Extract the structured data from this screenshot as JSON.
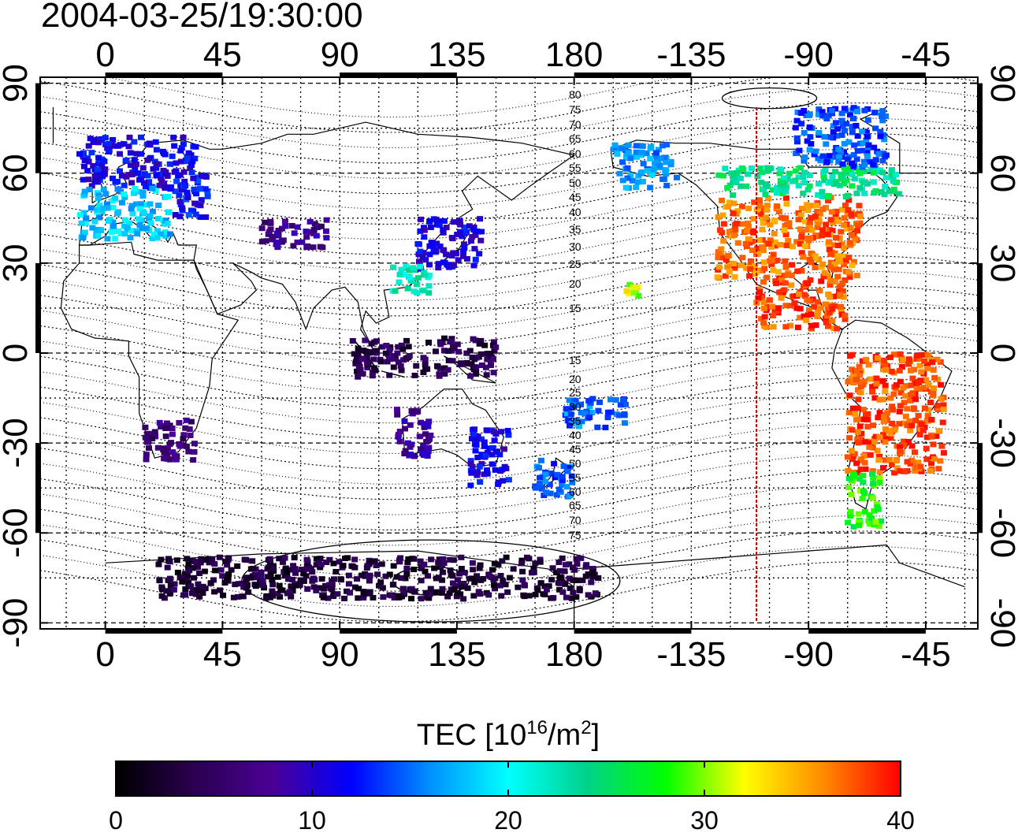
{
  "chart_data": {
    "type": "heatmap",
    "title": "2004-03-25/19:30:00",
    "projection": "equirectangular world map, longitude axis starting at -25",
    "x_axis": {
      "ticks": [
        0,
        45,
        90,
        135,
        180,
        -135,
        -90,
        -45
      ],
      "tick_labels": [
        "0",
        "45",
        "90",
        "135",
        "180",
        "-135",
        "-90",
        "-45"
      ],
      "lon_range": [
        -25,
        335
      ]
    },
    "y_axis": {
      "ticks": [
        90,
        60,
        30,
        0,
        -30,
        -60,
        -90
      ],
      "tick_labels": [
        "90",
        "60",
        "30",
        "0",
        "-30",
        "-60",
        "-90"
      ],
      "lat_range": [
        -92,
        92
      ]
    },
    "grid": true,
    "colorbar": {
      "label_prefix": "TEC  [10",
      "label_sup1": "16",
      "label_mid": "/m",
      "label_sup2": "2",
      "label_suffix": "]",
      "min": 0,
      "max": 40,
      "ticks": [
        0,
        10,
        20,
        30,
        40
      ],
      "tick_labels": [
        "0",
        "10",
        "20",
        "30",
        "40"
      ],
      "colormap": [
        "#000000",
        "#2a0050",
        "#4b0096",
        "#0000ff",
        "#0090ff",
        "#00ffff",
        "#00d28c",
        "#00ff00",
        "#ffff00",
        "#ff8c00",
        "#ff0000"
      ]
    },
    "marker_line": {
      "lon": -110,
      "color": "#e00000"
    },
    "contour_labels": [
      "80",
      "75",
      "70",
      "65",
      "60",
      "55",
      "50",
      "45",
      "40",
      "35",
      "30",
      "25",
      "20",
      "15",
      "15",
      "20",
      "25",
      "30",
      "35",
      "40",
      "45",
      "50",
      "55",
      "60",
      "65",
      "70",
      "75"
    ],
    "tec_regions": [
      {
        "name": "north-america",
        "lat": [
          25,
          52
        ],
        "lon": [
          -125,
          -70
        ],
        "tec": 37
      },
      {
        "name": "mexico-caribbean",
        "lat": [
          8,
          25
        ],
        "lon": [
          -110,
          -75
        ],
        "tec": 38
      },
      {
        "name": "south-america-east",
        "lat": [
          -40,
          0
        ],
        "lon": [
          -75,
          -38
        ],
        "tec": 38
      },
      {
        "name": "south-america-south",
        "lat": [
          -58,
          -40
        ],
        "lon": [
          -75,
          -62
        ],
        "tec": 28
      },
      {
        "name": "canada-band",
        "lat": [
          52,
          62
        ],
        "lon": [
          -125,
          -55
        ],
        "tec": 24
      },
      {
        "name": "canada-north",
        "lat": [
          62,
          82
        ],
        "lon": [
          -95,
          -60
        ],
        "tec": 14
      },
      {
        "name": "europe-north",
        "lat": [
          55,
          72
        ],
        "lon": [
          -10,
          35
        ],
        "tec": 11
      },
      {
        "name": "europe-south",
        "lat": [
          38,
          55
        ],
        "lon": [
          -10,
          25
        ],
        "tec": 18
      },
      {
        "name": "east-russia",
        "lat": [
          45,
          60
        ],
        "lon": [
          25,
          40
        ],
        "tec": 12
      },
      {
        "name": "central-asia",
        "lat": [
          35,
          45
        ],
        "lon": [
          60,
          85
        ],
        "tec": 7
      },
      {
        "name": "east-asia",
        "lat": [
          28,
          45
        ],
        "lon": [
          120,
          145
        ],
        "tec": 11
      },
      {
        "name": "taiwan-south-china",
        "lat": [
          20,
          30
        ],
        "lon": [
          110,
          125
        ],
        "tec": 22
      },
      {
        "name": "australia-west",
        "lat": [
          -35,
          -18
        ],
        "lon": [
          112,
          125
        ],
        "tec": 8
      },
      {
        "name": "australia-east",
        "lat": [
          -45,
          -25
        ],
        "lon": [
          140,
          155
        ],
        "tec": 11
      },
      {
        "name": "new-zealand",
        "lat": [
          -48,
          -35
        ],
        "lon": [
          165,
          180
        ],
        "tec": 14
      },
      {
        "name": "hawaii",
        "lat": [
          18,
          23
        ],
        "lon": [
          -160,
          -154
        ],
        "tec": 31
      },
      {
        "name": "indonesia",
        "lat": [
          -8,
          5
        ],
        "lon": [
          95,
          150
        ],
        "tec": 4
      },
      {
        "name": "antarctica",
        "lat": [
          -82,
          -68
        ],
        "lon": [
          20,
          190
        ],
        "tec": 3
      },
      {
        "name": "south-africa",
        "lat": [
          -36,
          -22
        ],
        "lon": [
          15,
          35
        ],
        "tec": 6
      },
      {
        "name": "pacific-south",
        "lat": [
          -25,
          -15
        ],
        "lon": [
          175,
          200
        ],
        "tec": 15
      },
      {
        "name": "alaska",
        "lat": [
          55,
          70
        ],
        "lon": [
          -165,
          -140
        ],
        "tec": 16
      }
    ]
  }
}
